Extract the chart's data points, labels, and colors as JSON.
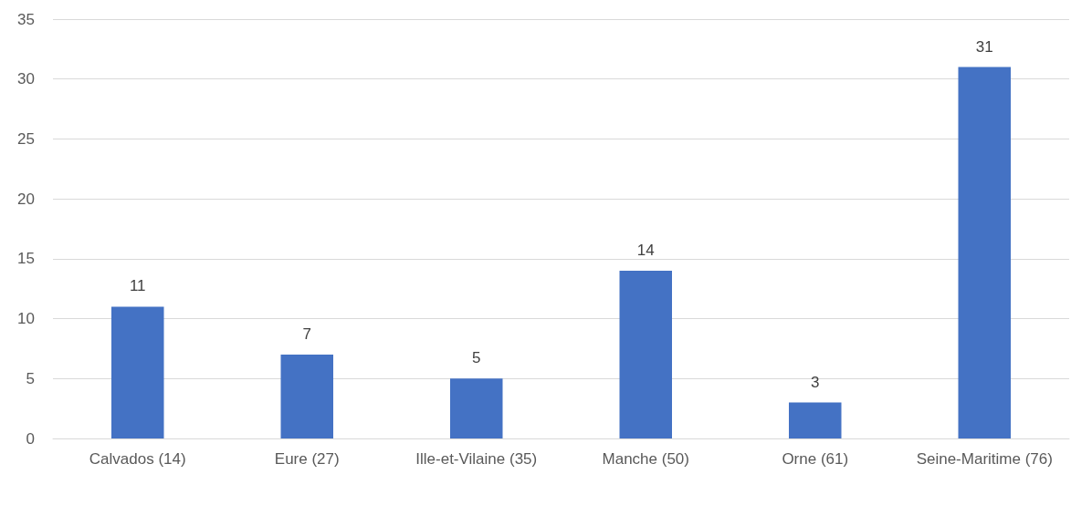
{
  "chart_data": {
    "type": "bar",
    "categories": [
      "Calvados (14)",
      "Eure (27)",
      "Ille-et-Vilaine (35)",
      "Manche (50)",
      "Orne (61)",
      "Seine-Maritime (76)"
    ],
    "values": [
      11,
      7,
      5,
      14,
      3,
      31
    ],
    "color": "#4472c4",
    "ylim": [
      0,
      35
    ],
    "yticks": [
      0,
      5,
      10,
      15,
      20,
      25,
      30,
      35
    ],
    "grid": "y",
    "data_labels": true
  }
}
